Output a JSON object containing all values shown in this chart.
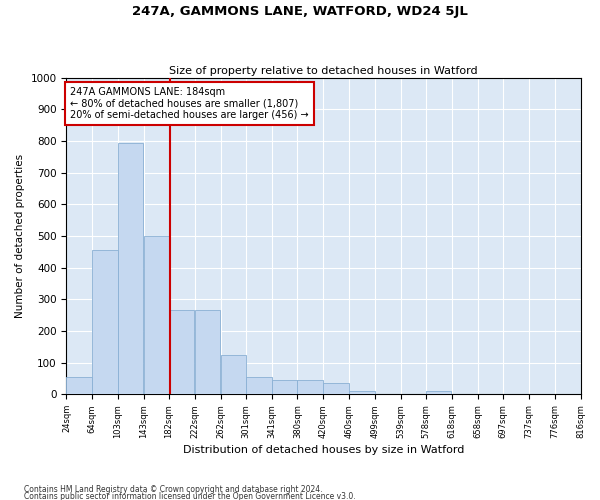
{
  "title": "247A, GAMMONS LANE, WATFORD, WD24 5JL",
  "subtitle": "Size of property relative to detached houses in Watford",
  "xlabel": "Distribution of detached houses by size in Watford",
  "ylabel": "Number of detached properties",
  "footnote1": "Contains HM Land Registry data © Crown copyright and database right 2024.",
  "footnote2": "Contains public sector information licensed under the Open Government Licence v3.0.",
  "bar_left_edges": [
    24,
    64,
    103,
    143,
    182,
    222,
    262,
    301,
    341,
    380,
    420,
    460,
    499,
    539,
    578,
    618,
    658,
    697,
    737,
    776
  ],
  "bar_heights": [
    55,
    455,
    795,
    500,
    265,
    265,
    125,
    55,
    45,
    45,
    35,
    10,
    0,
    0,
    10,
    0,
    0,
    0,
    0,
    0
  ],
  "bin_width": 39,
  "bar_color": "#c5d8f0",
  "bar_edge_color": "#8ab0d4",
  "vline_x": 184,
  "vline_color": "#cc0000",
  "annotation_text": "247A GAMMONS LANE: 184sqm\n← 80% of detached houses are smaller (1,807)\n20% of semi-detached houses are larger (456) →",
  "annotation_box_facecolor": "#ffffff",
  "annotation_box_edgecolor": "#cc0000",
  "xlim_left": 24,
  "xlim_right": 816,
  "ylim_top": 1000,
  "tick_labels": [
    "24sqm",
    "64sqm",
    "103sqm",
    "143sqm",
    "182sqm",
    "222sqm",
    "262sqm",
    "301sqm",
    "341sqm",
    "380sqm",
    "420sqm",
    "460sqm",
    "499sqm",
    "539sqm",
    "578sqm",
    "618sqm",
    "658sqm",
    "697sqm",
    "737sqm",
    "776sqm",
    "816sqm"
  ],
  "tick_positions": [
    24,
    64,
    103,
    143,
    182,
    222,
    262,
    301,
    341,
    380,
    420,
    460,
    499,
    539,
    578,
    618,
    658,
    697,
    737,
    776,
    816
  ],
  "fig_bg_color": "#ffffff",
  "plot_bg_color": "#dce8f5",
  "grid_color": "#ffffff",
  "yticks": [
    0,
    100,
    200,
    300,
    400,
    500,
    600,
    700,
    800,
    900,
    1000
  ]
}
